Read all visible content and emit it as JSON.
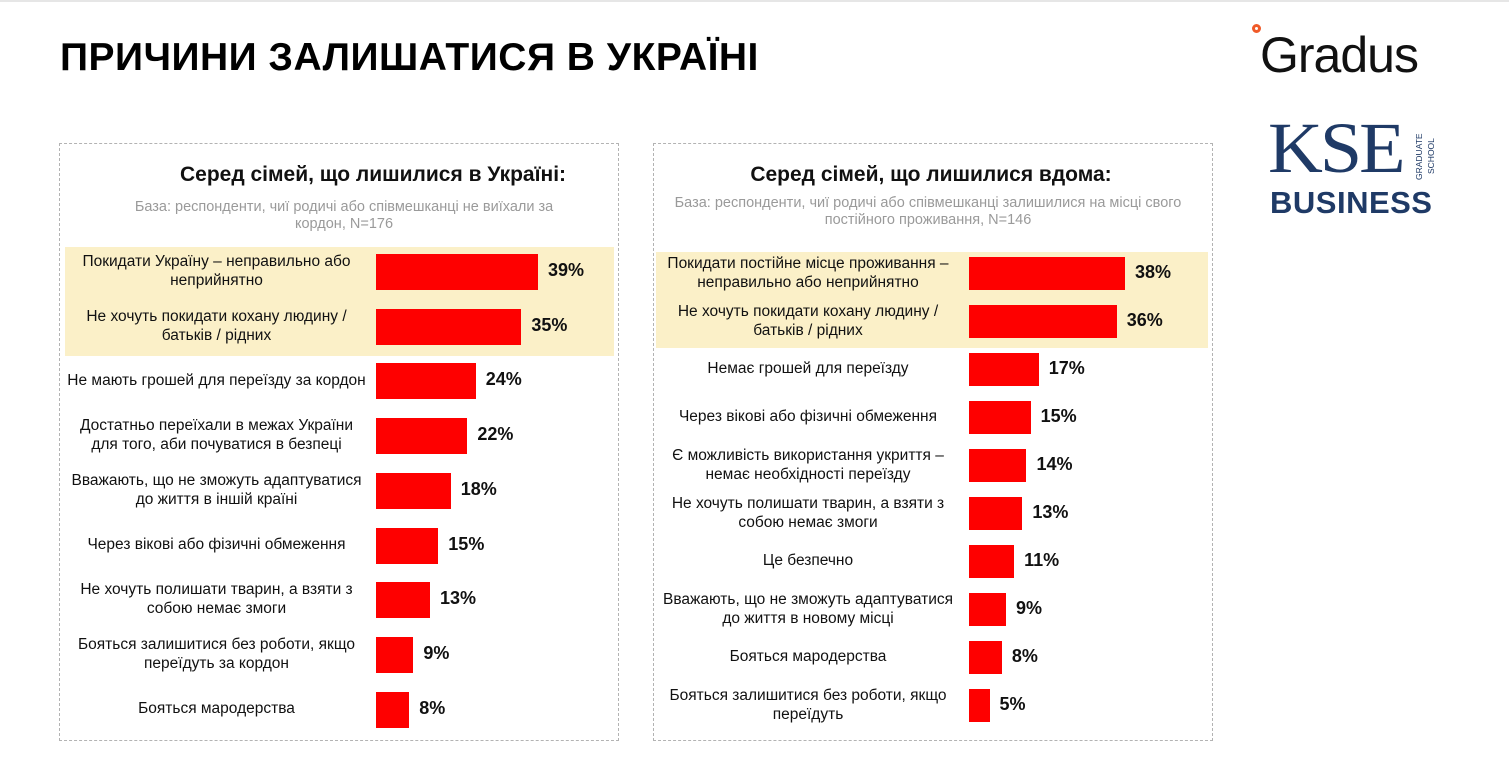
{
  "page": {
    "title": "ПРИЧИНИ ЗАЛИШАТИСЯ В УКРАЇНІ"
  },
  "logos": {
    "gradus": "Gradus",
    "kse_main": "KSE",
    "kse_school_line1": "GRADUATE",
    "kse_school_line2": "SCHOOL",
    "kse_business": "BUSINESS"
  },
  "colors": {
    "bar": "#fe0000",
    "highlight": "#fbf0c8",
    "kse_blue": "#1f3a66",
    "gradus_accent": "#f05a28"
  },
  "chart_data": [
    {
      "type": "bar",
      "orientation": "horizontal",
      "title": "Серед сімей, що лишилися в Україні:",
      "base": "База: респонденти, чиї родичі або співмешканці не виїхали за кордон, N=176",
      "highlighted_count": 2,
      "xlim": [
        0,
        39
      ],
      "categories": [
        "Покидати Україну – неправильно або неприйнятно",
        "Не хочуть покидати кохану людину / батьків / рідних",
        "Не мають грошей для переїзду за кордон",
        "Достатньо переїхали в межах України для того, аби почуватися в безпеці",
        "Вважають, що не зможуть адаптуватися до життя в іншій країні",
        "Через вікові або фізичні обмеження",
        "Не хочуть полишати тварин, а взяти з собою немає змоги",
        "Бояться залишитися без роботи, якщо переїдуть за кордон",
        "Бояться мародерства"
      ],
      "values": [
        39,
        35,
        24,
        22,
        18,
        15,
        13,
        9,
        8
      ],
      "value_labels": [
        "39%",
        "35%",
        "24%",
        "22%",
        "18%",
        "15%",
        "13%",
        "9%",
        "8%"
      ]
    },
    {
      "type": "bar",
      "orientation": "horizontal",
      "title": "Серед сімей, що лишилися вдома:",
      "base": "База: респонденти, чиї родичі або співмешканці залишилися на місці свого постійного проживання, N=146",
      "highlighted_count": 2,
      "xlim": [
        0,
        38
      ],
      "categories": [
        "Покидати постійне місце проживання – неправильно або неприйнятно",
        "Не хочуть покидати кохану людину / батьків / рідних",
        "Немає грошей для переїзду",
        "Через вікові або фізичні обмеження",
        "Є можливість використання укриття – немає необхідності переїзду",
        "Не хочуть полишати тварин, а взяти з собою немає змоги",
        "Це безпечно",
        "Вважають, що не зможуть адаптуватися до життя в новому місці",
        "Бояться мародерства",
        "Бояться залишитися без роботи, якщо переїдуть"
      ],
      "values": [
        38,
        36,
        17,
        15,
        14,
        13,
        11,
        9,
        8,
        5
      ],
      "value_labels": [
        "38%",
        "36%",
        "17%",
        "15%",
        "14%",
        "13%",
        "11%",
        "9%",
        "8%",
        "5%"
      ]
    }
  ]
}
